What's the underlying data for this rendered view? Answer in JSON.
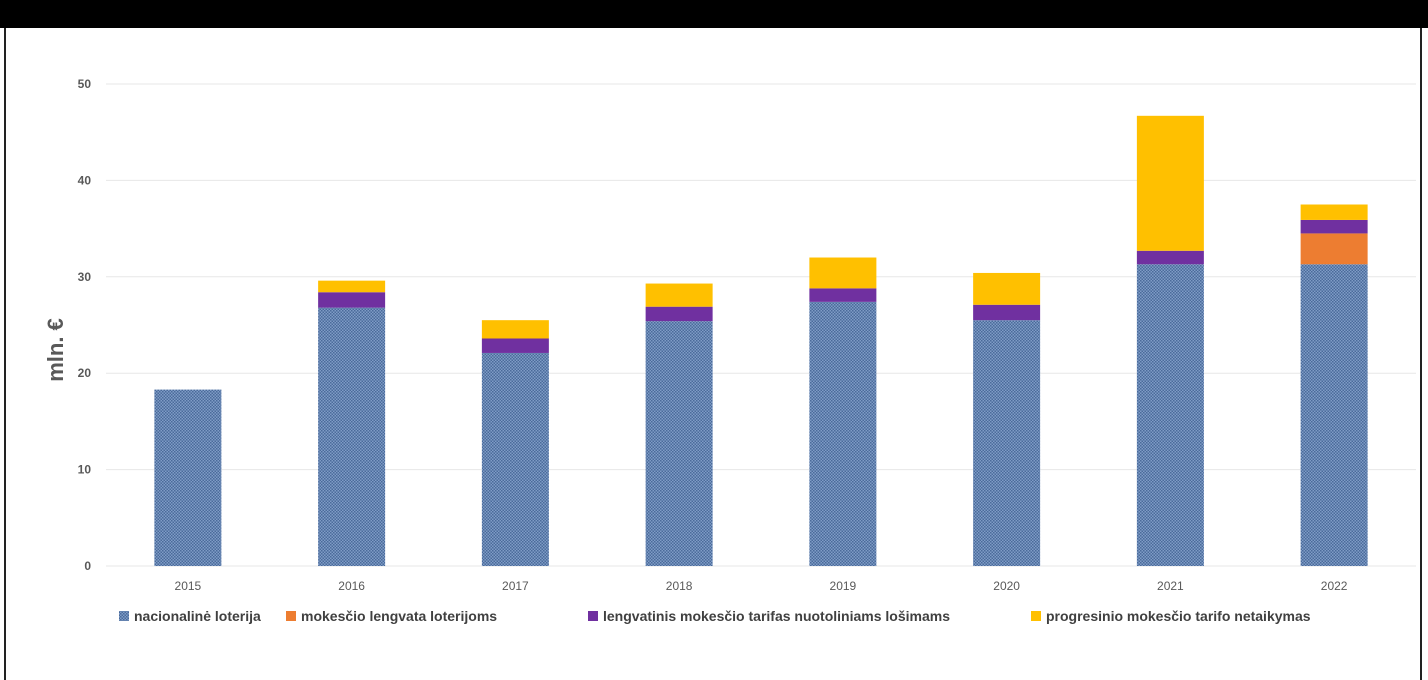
{
  "header": {
    "text": ""
  },
  "colors": {
    "nacionaline": "#5a7bab",
    "mokescio_lengvata": "#ed7d31",
    "lengvatinis": "#7030a0",
    "progresinio": "#ffc000",
    "gridline": "#e7e7e7",
    "header_bg": "#000000"
  },
  "chart_data": {
    "type": "bar",
    "stacked": true,
    "title": "",
    "xlabel": "",
    "ylabel": "mln. €",
    "ylim": [
      0,
      50
    ],
    "yticks": [
      "0",
      "10",
      "20",
      "30",
      "40",
      "50"
    ],
    "categories": [
      "2015",
      "2016",
      "2017",
      "2018",
      "2019",
      "2020",
      "2021",
      "2022"
    ],
    "grid": true,
    "legend_position": "bottom",
    "series": [
      {
        "name": "nacionalinė loterija",
        "color": "#5a7bab",
        "values": [
          18.3,
          26.8,
          22.1,
          25.4,
          27.4,
          25.5,
          31.3,
          31.3
        ]
      },
      {
        "name": "mokesčio lengvata loterijoms",
        "color": "#ed7d31",
        "values": [
          0,
          0,
          0,
          0,
          0,
          0,
          0,
          3.2
        ]
      },
      {
        "name": "lengvatinis mokesčio tarifas nuotoliniams lošimams",
        "color": "#7030a0",
        "values": [
          0,
          1.6,
          1.5,
          1.5,
          1.4,
          1.6,
          1.4,
          1.4
        ]
      },
      {
        "name": "progresinio mokesčio tarifo netaikymas",
        "color": "#ffc000",
        "values": [
          0,
          1.2,
          1.9,
          2.4,
          3.2,
          3.3,
          14.0,
          1.6
        ]
      }
    ]
  }
}
